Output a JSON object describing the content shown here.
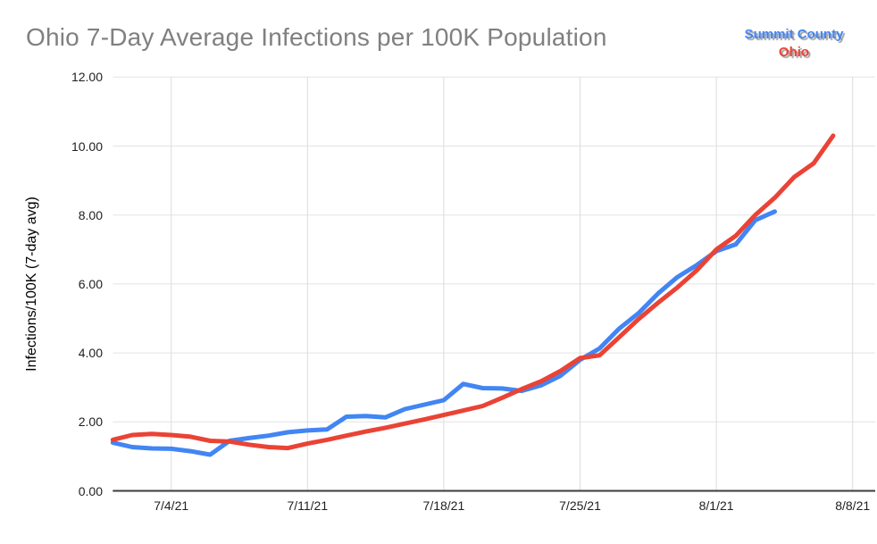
{
  "title": "Ohio 7-Day Average Infections per 100K Population",
  "legend": {
    "position": "top-right",
    "items": [
      {
        "label": "Summit County",
        "color": "#4285F4"
      },
      {
        "label": "Ohio",
        "color": "#EA4335"
      }
    ]
  },
  "colors": {
    "title_text": "#808080",
    "tick_label_text": "#1f1f1f",
    "grid_horizontal": "#e3e3e3",
    "grid_vertical": "#dcdcdc",
    "axis_baseline": "#3c3c3c",
    "series_blue": "#4285F4",
    "series_red": "#EA4335"
  },
  "chart_data": {
    "type": "line",
    "title": "Ohio 7-Day Average Infections per 100K Population",
    "xlabel": "",
    "ylabel": "Infections/100K (7-day avg)",
    "ylim": [
      0,
      12
    ],
    "grid": true,
    "legend_position": "top-right",
    "y_ticks": [
      0,
      2,
      4,
      6,
      8,
      10,
      12
    ],
    "y_tick_labels": [
      "0.00",
      "2.00",
      "4.00",
      "6.00",
      "8.00",
      "10.00",
      "12.00"
    ],
    "x_tick_labels": [
      "7/4/21",
      "7/11/21",
      "7/18/21",
      "7/25/21",
      "8/1/21",
      "8/8/21"
    ],
    "x_tick_day_indices": [
      3,
      10,
      17,
      24,
      31,
      38
    ],
    "dates": [
      "7/1/21",
      "7/2/21",
      "7/3/21",
      "7/4/21",
      "7/5/21",
      "7/6/21",
      "7/7/21",
      "7/8/21",
      "7/9/21",
      "7/10/21",
      "7/11/21",
      "7/12/21",
      "7/13/21",
      "7/14/21",
      "7/15/21",
      "7/16/21",
      "7/17/21",
      "7/18/21",
      "7/19/21",
      "7/20/21",
      "7/21/21",
      "7/22/21",
      "7/23/21",
      "7/24/21",
      "7/25/21",
      "7/26/21",
      "7/27/21",
      "7/28/21",
      "7/29/21",
      "7/30/21",
      "7/31/21",
      "8/1/21",
      "8/2/21",
      "8/3/21",
      "8/4/21",
      "8/5/21",
      "8/6/21",
      "8/7/21",
      "8/8/21"
    ],
    "series": [
      {
        "name": "Summit County",
        "color": "#4285F4",
        "start_day_index": 0,
        "values": [
          1.4,
          1.27,
          1.23,
          1.22,
          1.15,
          1.05,
          1.45,
          1.53,
          1.6,
          1.7,
          1.75,
          1.78,
          2.15,
          2.17,
          2.13,
          2.37,
          2.5,
          2.63,
          3.1,
          2.98,
          2.97,
          2.9,
          3.06,
          3.34,
          3.8,
          4.13,
          4.7,
          5.15,
          5.72,
          6.2,
          6.55,
          6.95,
          7.15,
          7.85,
          8.1
        ]
      },
      {
        "name": "Ohio",
        "color": "#EA4335",
        "start_day_index": 0,
        "values": [
          1.48,
          1.62,
          1.65,
          1.62,
          1.57,
          1.45,
          1.43,
          1.34,
          1.27,
          1.24,
          1.37,
          1.48,
          1.6,
          1.72,
          1.83,
          1.95,
          2.07,
          2.2,
          2.33,
          2.46,
          2.7,
          2.95,
          3.18,
          3.48,
          3.85,
          3.93,
          4.45,
          4.98,
          5.45,
          5.9,
          6.4,
          7.0,
          7.4,
          8.0,
          8.5,
          9.1,
          9.5,
          10.3
        ]
      }
    ]
  }
}
